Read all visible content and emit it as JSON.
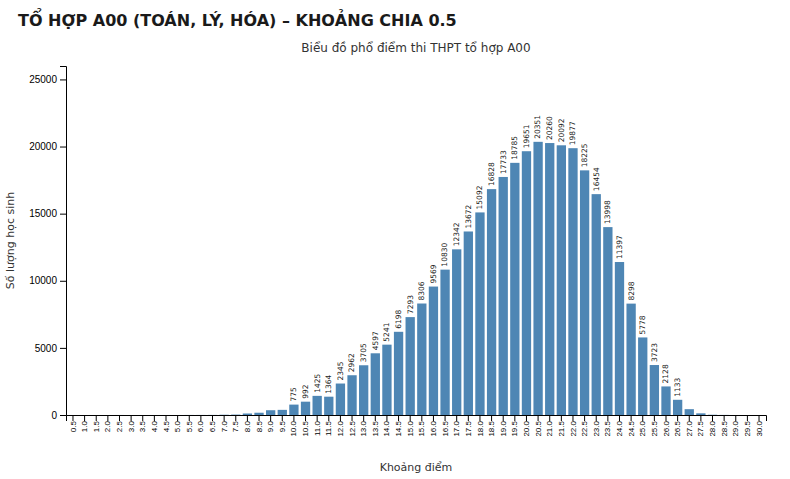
{
  "chart_data": {
    "type": "bar",
    "title": "TỔ HỢP A00 (TOÁN, LÝ, HÓA) – KHOẢNG CHIA 0.5",
    "subtitle": "Biểu đồ phổ điểm thi THPT tổ hợp A00",
    "xlabel": "Khoảng điểm",
    "ylabel": "Số lượng học sinh",
    "color": "#4e86b4",
    "categories": [
      "0.5",
      "1.0",
      "1.5",
      "2.0",
      "2.5",
      "3.0",
      "3.5",
      "4.0",
      "4.5",
      "5.0",
      "5.5",
      "6.0",
      "6.5",
      "7.0",
      "7.5",
      "8.0",
      "8.5",
      "9.0",
      "9.5",
      "10.0",
      "10.5",
      "11.0",
      "11.5",
      "12.0",
      "12.5",
      "13.0",
      "13.5",
      "14.0",
      "14.5",
      "15.0",
      "15.5",
      "16.0",
      "16.5",
      "17.0",
      "17.5",
      "18.0",
      "18.5",
      "19.0",
      "19.5",
      "20.0",
      "20.5",
      "21.0",
      "21.5",
      "22.0",
      "22.5",
      "23.0",
      "23.5",
      "24.0",
      "24.5",
      "25.0",
      "25.5",
      "26.0",
      "26.5",
      "27.0",
      "27.5",
      "28.0",
      "28.5",
      "29.0",
      "29.5",
      "30.0"
    ],
    "values": [
      1,
      0,
      0,
      0,
      2,
      0,
      0,
      1,
      1,
      1,
      4,
      5,
      7,
      20,
      31,
      112,
      169,
      356,
      383,
      775,
      992,
      1425,
      1364,
      2345,
      2962,
      3705,
      4597,
      5241,
      6198,
      7293,
      8306,
      9569,
      10830,
      12342,
      13672,
      15092,
      16828,
      17733,
      18785,
      19651,
      20351,
      20260,
      20092,
      19877,
      18225,
      16454,
      13998,
      11397,
      8298,
      5778,
      3723,
      2128,
      1133,
      434,
      124,
      20,
      7,
      0,
      0,
      0
    ],
    "data_labels": true,
    "value_labels": [
      null,
      null,
      null,
      null,
      null,
      null,
      null,
      null,
      null,
      null,
      null,
      null,
      null,
      null,
      null,
      null,
      null,
      null,
      null,
      "775",
      "992",
      "1425",
      "1364",
      "2345",
      "2962",
      "3705",
      "4597",
      "5241",
      "6198",
      "7293",
      "8306",
      "9569",
      "10830",
      "12342",
      "13672",
      "15092",
      "16828",
      "17733",
      "18785",
      "19651",
      "20351",
      "20260",
      "20092",
      "19877",
      "18225",
      "16454",
      "13998",
      "11397",
      "8298",
      "5778",
      "3723",
      "2128",
      "1133",
      null,
      null,
      null,
      null,
      null,
      null,
      null
    ],
    "ylim": [
      0,
      26000
    ],
    "yticks": [
      0,
      5000,
      10000,
      15000,
      20000,
      25000
    ],
    "grid": false
  }
}
